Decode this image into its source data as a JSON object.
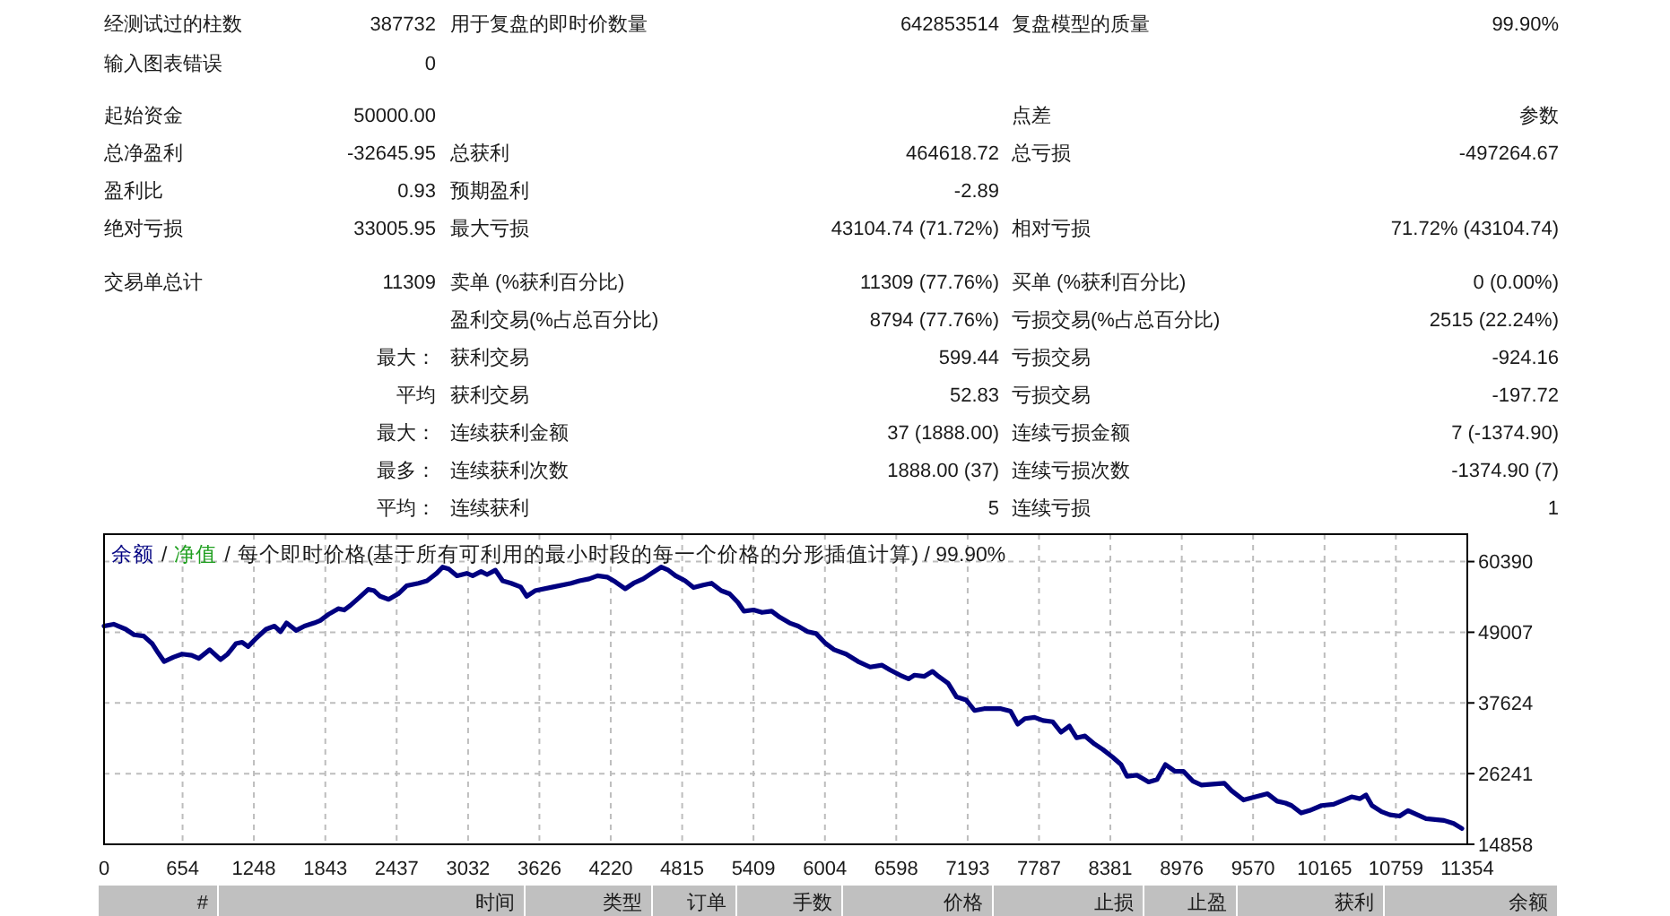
{
  "chart_data": [
    {
      "type": "other",
      "annotations": [
        "经测试过的柱数",
        "387732",
        "用于复盘的即时价数量",
        "642853514",
        "复盘模型的质量",
        "99.90%",
        "输入图表错误",
        "0",
        "起始资金",
        "50000.00",
        "点差",
        "参数",
        "总净盈利",
        "-32645.95",
        "总获利",
        "464618.72",
        "总亏损",
        "-497264.67",
        "盈利比",
        "0.93",
        "预期盈利",
        "-2.89",
        "绝对亏损",
        "33005.95",
        "最大亏损",
        "43104.74 (71.72%)",
        "相对亏损",
        "71.72% (43104.74)",
        "交易单总计",
        "11309",
        "卖单 (%获利百分比)",
        "11309 (77.76%)",
        "买单 (%获利百分比)",
        "0 (0.00%)",
        "盈利交易(%占总百分比)",
        "8794 (77.76%)",
        "亏损交易(%占总百分比)",
        "2515 (22.24%)",
        "最大：",
        "获利交易",
        "599.44",
        "亏损交易",
        "-924.16",
        "平均",
        "获利交易",
        "52.83",
        "亏损交易",
        "-197.72",
        "最大：",
        "连续获利金额",
        "37 (1888.00)",
        "连续亏损金额",
        "7 (-1374.90)",
        "最多：",
        "连续获利次数",
        "1888.00 (37)",
        "连续亏损次数",
        "-1374.90 (7)",
        "平均：",
        "连续获利",
        "5",
        "连续亏损",
        "1"
      ]
    },
    {
      "type": "line",
      "title": "每个即时价格(基于所有可利用的最小时段的每一个价格的分形插值计算) / 99.90%",
      "annotations": [
        "/",
        "/"
      ],
      "x": [
        0,
        80,
        180,
        250,
        330,
        400,
        450,
        500,
        580,
        650,
        730,
        790,
        880,
        970,
        1030,
        1100,
        1150,
        1200,
        1270,
        1350,
        1420,
        1470,
        1520,
        1600,
        1670,
        1750,
        1800,
        1870,
        1950,
        2000,
        2050,
        2120,
        2200,
        2250,
        2300,
        2370,
        2450,
        2520,
        2620,
        2690,
        2770,
        2820,
        2870,
        2940,
        3020,
        3070,
        3140,
        3190,
        3260,
        3320,
        3390,
        3470,
        3520,
        3590,
        3740,
        3890,
        3960,
        4040,
        4110,
        4190,
        4260,
        4340,
        4410,
        4490,
        4560,
        4640,
        4700,
        4760,
        4840,
        4910,
        4990,
        5060,
        5140,
        5210,
        5280,
        5330,
        5410,
        5480,
        5560,
        5630,
        5710,
        5780,
        5860,
        5930,
        6010,
        6080,
        6180,
        6280,
        6380,
        6480,
        6550,
        6630,
        6700,
        6750,
        6830,
        6900,
        6950,
        7030,
        7100,
        7180,
        7250,
        7330,
        7470,
        7550,
        7610,
        7670,
        7750,
        7820,
        7900,
        7970,
        8040,
        8100,
        8170,
        8250,
        8320,
        8400,
        8470,
        8520,
        8600,
        8700,
        8770,
        8840,
        8920,
        8990,
        9070,
        9140,
        9330,
        9390,
        9490,
        9590,
        9690,
        9770,
        9840,
        9890,
        9970,
        10040,
        10140,
        10240,
        10390,
        10460,
        10510,
        10560,
        10640,
        10710,
        10790,
        10860,
        11010,
        11160,
        11240,
        11309
      ],
      "series": [
        {
          "name": "余额",
          "color": "#000080",
          "values": [
            50000,
            50300,
            49500,
            48600,
            48400,
            47200,
            45700,
            44300,
            45000,
            45500,
            45300,
            44800,
            46200,
            44600,
            45500,
            47200,
            47400,
            46700,
            48100,
            49500,
            50000,
            49100,
            50500,
            49300,
            50000,
            50500,
            50900,
            51900,
            52800,
            52600,
            53300,
            54500,
            55900,
            55700,
            54800,
            54300,
            55200,
            56500,
            56900,
            57300,
            58500,
            59500,
            59200,
            58100,
            58500,
            58100,
            58800,
            58300,
            59000,
            57300,
            56900,
            56300,
            54800,
            55700,
            56300,
            56900,
            57300,
            57600,
            58100,
            57900,
            57100,
            56000,
            56900,
            57600,
            58500,
            59500,
            59000,
            58100,
            57300,
            56200,
            56600,
            56900,
            55700,
            55200,
            53800,
            52400,
            52600,
            52200,
            52400,
            51400,
            50500,
            50000,
            49100,
            48800,
            47200,
            46200,
            45500,
            44300,
            43400,
            43700,
            42900,
            42100,
            41500,
            42100,
            41900,
            42700,
            41900,
            40800,
            38600,
            38100,
            36400,
            36700,
            36700,
            36300,
            34200,
            35100,
            35300,
            34800,
            34600,
            32900,
            33900,
            32000,
            32300,
            31000,
            30100,
            28900,
            27700,
            25800,
            26000,
            24900,
            25300,
            27700,
            26600,
            26600,
            25000,
            24400,
            24700,
            23500,
            22000,
            22500,
            23000,
            21800,
            21500,
            21100,
            19900,
            20300,
            21100,
            21300,
            22500,
            22200,
            22800,
            21100,
            20100,
            19600,
            19400,
            20300,
            19000,
            18700,
            18200,
            17400
          ]
        },
        {
          "name": "净值",
          "color": "#1f9f1f",
          "values": [
            null,
            null,
            null,
            null,
            null,
            null,
            null,
            null,
            null,
            null,
            null,
            null,
            null,
            null,
            null,
            null,
            null,
            null,
            null,
            null,
            null,
            null,
            null,
            null,
            null,
            null,
            null,
            null,
            null,
            null,
            null,
            null,
            null,
            null,
            null,
            null,
            null,
            null,
            null,
            null,
            null,
            null,
            null,
            null,
            null,
            null,
            null,
            null,
            null,
            null,
            null,
            null,
            null,
            null,
            null,
            null,
            null,
            null,
            null,
            null,
            null,
            null,
            null,
            null,
            null,
            null,
            null,
            null,
            null,
            null,
            null,
            null,
            null,
            null,
            null,
            null,
            null,
            null,
            null,
            null,
            null,
            null,
            null,
            null,
            null,
            null,
            null,
            null,
            null,
            null,
            null,
            null,
            null,
            null,
            null,
            null,
            null,
            null,
            null,
            null,
            null,
            null,
            null,
            null,
            null,
            null,
            null,
            null,
            null,
            null,
            null,
            null,
            null,
            null,
            null,
            null,
            null,
            null,
            null,
            null,
            null,
            null,
            null,
            null,
            null,
            null,
            null,
            null,
            null,
            null,
            null,
            null,
            null,
            null,
            null,
            null,
            null,
            null,
            null,
            null,
            null,
            null,
            null,
            null,
            null,
            null,
            null,
            null,
            null,
            null
          ]
        }
      ],
      "xlim": [
        0,
        11354
      ],
      "xticks": [
        0,
        654,
        1248,
        1843,
        2437,
        3032,
        3626,
        4220,
        4815,
        5409,
        6004,
        6598,
        7193,
        7787,
        8381,
        8976,
        9570,
        10165,
        10759,
        11354
      ],
      "ylim": [
        14858,
        64800
      ],
      "yticks": [
        14858,
        26241,
        37624,
        49007,
        60390
      ],
      "grid": true,
      "legend": "top left"
    },
    {
      "type": "other",
      "annotations": [
        "#",
        "时间",
        "类型",
        "订单",
        "手数",
        "价格",
        "止损",
        "止盈",
        "获利",
        "余额"
      ]
    }
  ]
}
